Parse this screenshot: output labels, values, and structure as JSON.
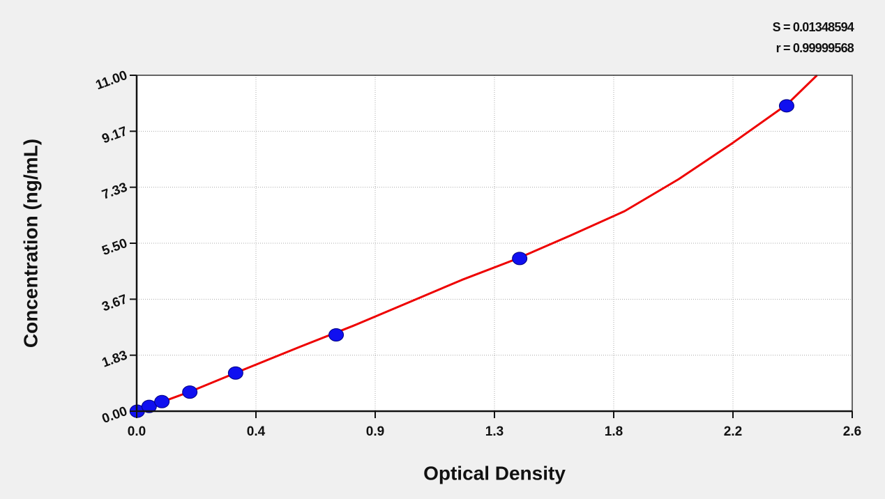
{
  "chart_data": {
    "type": "scatter",
    "xlabel": "Optical Density",
    "ylabel": "Concentration (ng/mL)",
    "annotations": [
      "S = 0.01348594",
      "r = 0.99999568"
    ],
    "xlim": [
      0,
      2.64
    ],
    "ylim": [
      0,
      11
    ],
    "xticks": [
      {
        "value": 0,
        "label": "0.0"
      },
      {
        "value": 0.44,
        "label": "0.4"
      },
      {
        "value": 0.88,
        "label": "0.9"
      },
      {
        "value": 1.32,
        "label": "1.3"
      },
      {
        "value": 1.76,
        "label": "1.8"
      },
      2.2,
      {
        "value": 2.64,
        "label": "2.6"
      }
    ],
    "yticks": [
      {
        "value": 0,
        "label": "0.00"
      },
      {
        "value": 1.8333,
        "label": "1.83"
      },
      {
        "value": 3.6667,
        "label": "3.67"
      },
      {
        "value": 5.5,
        "label": "5.50"
      },
      {
        "value": 7.3333,
        "label": "7.33"
      },
      {
        "value": 9.1667,
        "label": "9.17"
      },
      {
        "value": 11,
        "label": "11.00"
      }
    ],
    "grid": true,
    "series": [
      {
        "type": "scatter",
        "color": "#1010f0",
        "x": [
          0.002,
          0.046,
          0.093,
          0.196,
          0.365,
          0.736,
          1.413,
          2.398
        ],
        "values": [
          0,
          0.156,
          0.3125,
          0.625,
          1.25,
          2.5,
          5,
          10
        ]
      },
      {
        "type": "line",
        "color": "#ee0000",
        "x": [
          0,
          0.2,
          0.4,
          0.6,
          0.8,
          1.0,
          1.2,
          1.4,
          1.6,
          1.8,
          2.0,
          2.2,
          2.4,
          2.51
        ],
        "values": [
          0,
          0.65,
          1.38,
          2.1,
          2.8,
          3.55,
          4.3,
          4.98,
          5.75,
          6.55,
          7.6,
          8.79,
          10.05,
          11
        ]
      }
    ]
  }
}
